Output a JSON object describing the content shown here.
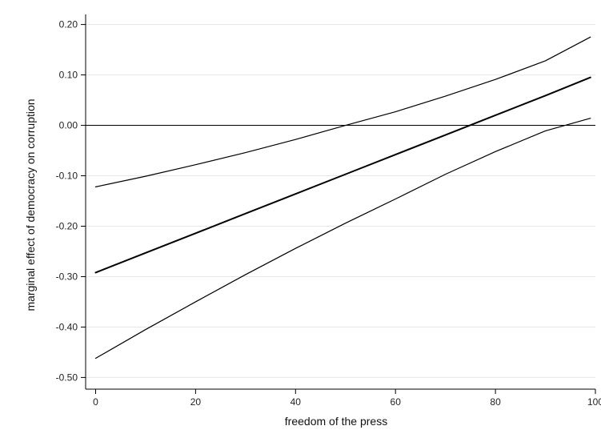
{
  "chart_data": {
    "type": "line",
    "title": "",
    "xlabel": "freedom of the press",
    "ylabel": "marginal effect of democracy on corruption",
    "xlim": [
      -2,
      100
    ],
    "ylim": [
      -0.52,
      0.22
    ],
    "x_ticks": [
      0,
      20,
      40,
      60,
      80,
      100
    ],
    "x_tick_labels": [
      "0",
      "20",
      "40",
      "60",
      "80",
      "100"
    ],
    "y_ticks": [
      0.2,
      0.1,
      0.0,
      -0.1,
      -0.2,
      -0.3,
      -0.4,
      -0.5
    ],
    "y_tick_labels": [
      "0.20",
      "0.10",
      "0.00",
      "-0.10",
      "-0.20",
      "-0.30",
      "-0.40",
      "-0.50"
    ],
    "grid": true,
    "reference_line_y": 0.0,
    "series": [
      {
        "role": "upper-bound",
        "x": [
          0,
          10,
          20,
          30,
          40,
          50,
          60,
          70,
          80,
          90,
          99
        ],
        "y": [
          -0.122,
          -0.101,
          -0.078,
          -0.054,
          -0.028,
          0.0,
          0.027,
          0.058,
          0.091,
          0.128,
          0.175
        ]
      },
      {
        "role": "estimate",
        "x": [
          0,
          10,
          20,
          30,
          40,
          50,
          60,
          70,
          80,
          90,
          99
        ],
        "y": [
          -0.292,
          -0.253,
          -0.214,
          -0.175,
          -0.136,
          -0.097,
          -0.058,
          -0.019,
          0.02,
          0.059,
          0.095
        ]
      },
      {
        "role": "lower-bound",
        "x": [
          0,
          10,
          20,
          30,
          40,
          50,
          60,
          70,
          80,
          90,
          99
        ],
        "y": [
          -0.462,
          -0.405,
          -0.35,
          -0.296,
          -0.244,
          -0.194,
          -0.146,
          -0.097,
          -0.052,
          -0.011,
          0.014
        ]
      }
    ],
    "colors": {
      "line": "#000000",
      "grid": "#e6e6e6",
      "axis": "#000000",
      "background": "#ffffff"
    }
  }
}
